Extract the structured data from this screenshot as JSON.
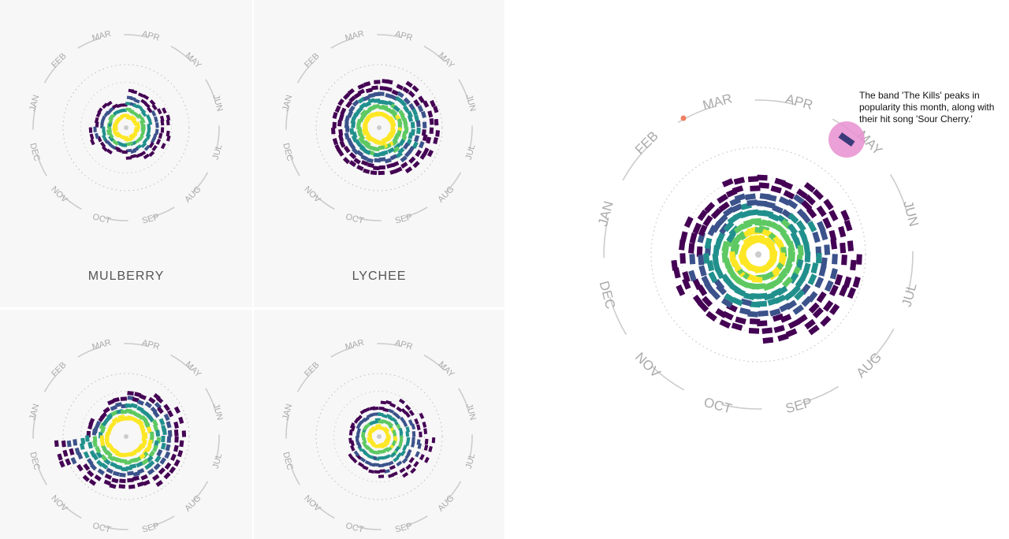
{
  "palette": [
    "#440154",
    "#3b528b",
    "#21908d",
    "#5ec962",
    "#fde725"
  ],
  "months": [
    "JAN",
    "FEB",
    "MAR",
    "APR",
    "MAY",
    "JUN",
    "JUL",
    "AUG",
    "SEP",
    "OCT",
    "NOV",
    "DEC"
  ],
  "panels": [
    {
      "title": "MULBERRY"
    },
    {
      "title": "LYCHEE"
    },
    {
      "title": ""
    },
    {
      "title": ""
    }
  ],
  "big_chart": {
    "annotation": "The band 'The Kills' peaks in popularity this month, along with their hit song 'Sour Cherry.'",
    "highlight_color": "#e88fd0",
    "dot_color": "#f08060"
  },
  "chart_data": [
    {
      "type": "radial",
      "title": "MULBERRY",
      "months": [
        "JAN",
        "FEB",
        "MAR",
        "APR",
        "MAY",
        "JUN",
        "JUL",
        "AUG",
        "SEP",
        "OCT",
        "NOV",
        "DEC"
      ],
      "monthly_values": [
        4,
        4,
        3,
        5,
        5,
        6,
        6,
        5,
        4,
        3,
        4,
        5
      ]
    },
    {
      "type": "radial",
      "title": "LYCHEE",
      "months": [
        "JAN",
        "FEB",
        "MAR",
        "APR",
        "MAY",
        "JUN",
        "JUL",
        "AUG",
        "SEP",
        "OCT",
        "NOV",
        "DEC"
      ],
      "monthly_values": [
        6,
        6,
        6,
        6,
        7,
        8,
        8,
        7,
        6,
        6,
        6,
        6
      ]
    },
    {
      "type": "radial",
      "title": "",
      "months": [
        "JAN",
        "FEB",
        "MAR",
        "APR",
        "MAY",
        "JUN",
        "JUL",
        "AUG",
        "SEP",
        "OCT",
        "NOV",
        "DEC"
      ],
      "monthly_values": [
        4,
        3,
        4,
        5,
        6,
        7,
        7,
        7,
        6,
        6,
        7,
        9
      ]
    },
    {
      "type": "radial",
      "title": "",
      "months": [
        "JAN",
        "FEB",
        "MAR",
        "APR",
        "MAY",
        "JUN",
        "JUL",
        "AUG",
        "SEP",
        "OCT",
        "NOV",
        "DEC"
      ],
      "monthly_values": [
        4,
        4,
        4,
        5,
        6,
        7,
        8,
        7,
        6,
        5,
        5,
        4
      ]
    },
    {
      "type": "radial",
      "title": "",
      "months": [
        "JAN",
        "FEB",
        "MAR",
        "APR",
        "MAY",
        "JUN",
        "JUL",
        "AUG",
        "SEP",
        "OCT",
        "NOV",
        "DEC"
      ],
      "monthly_values": [
        8,
        7,
        8,
        8,
        9,
        10,
        11,
        10,
        9,
        8,
        8,
        9
      ]
    }
  ]
}
